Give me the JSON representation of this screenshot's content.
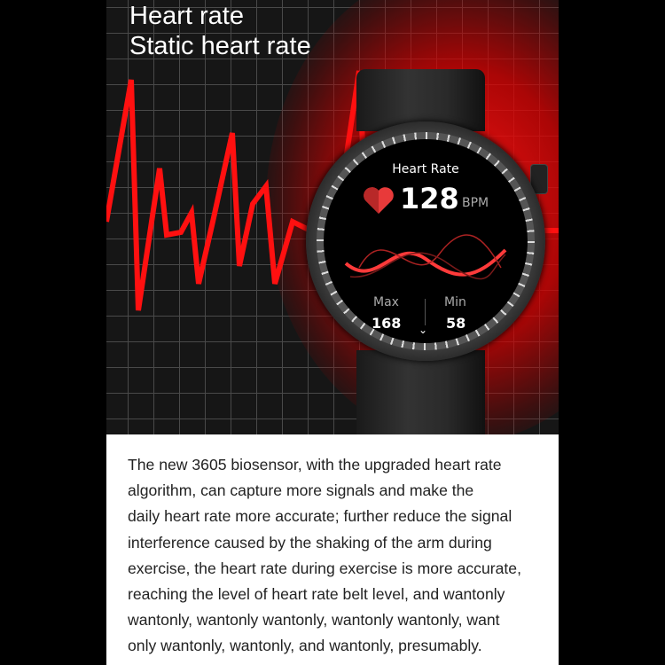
{
  "headline": {
    "line1": "Heart rate",
    "line2": "Static heart rate"
  },
  "watch": {
    "screen_title": "Heart Rate",
    "heart_icon": "heart-icon",
    "bpm_value": "128",
    "bpm_unit": "BPM",
    "max_label": "Max",
    "max_value": "168",
    "min_label": "Min",
    "min_value": "58",
    "chevron_icon": "chevron-down-icon"
  },
  "description": "The new 3605 biosensor, with the upgraded heart rate\nalgorithm, can capture more signals and make the\ndaily heart rate more accurate; further reduce the signal\ninterference caused by the shaking of the arm during\nexercise, the heart rate during exercise is more accurate,\nreaching the level of heart rate belt level, and wantonly\nwantonly, wantonly wantonly, wantonly wantonly, want\nonly wantonly, wantonly, and wantonly, presumably.",
  "colors": {
    "accent": "#ff1a1a",
    "background": "#161616",
    "text": "#222222"
  }
}
